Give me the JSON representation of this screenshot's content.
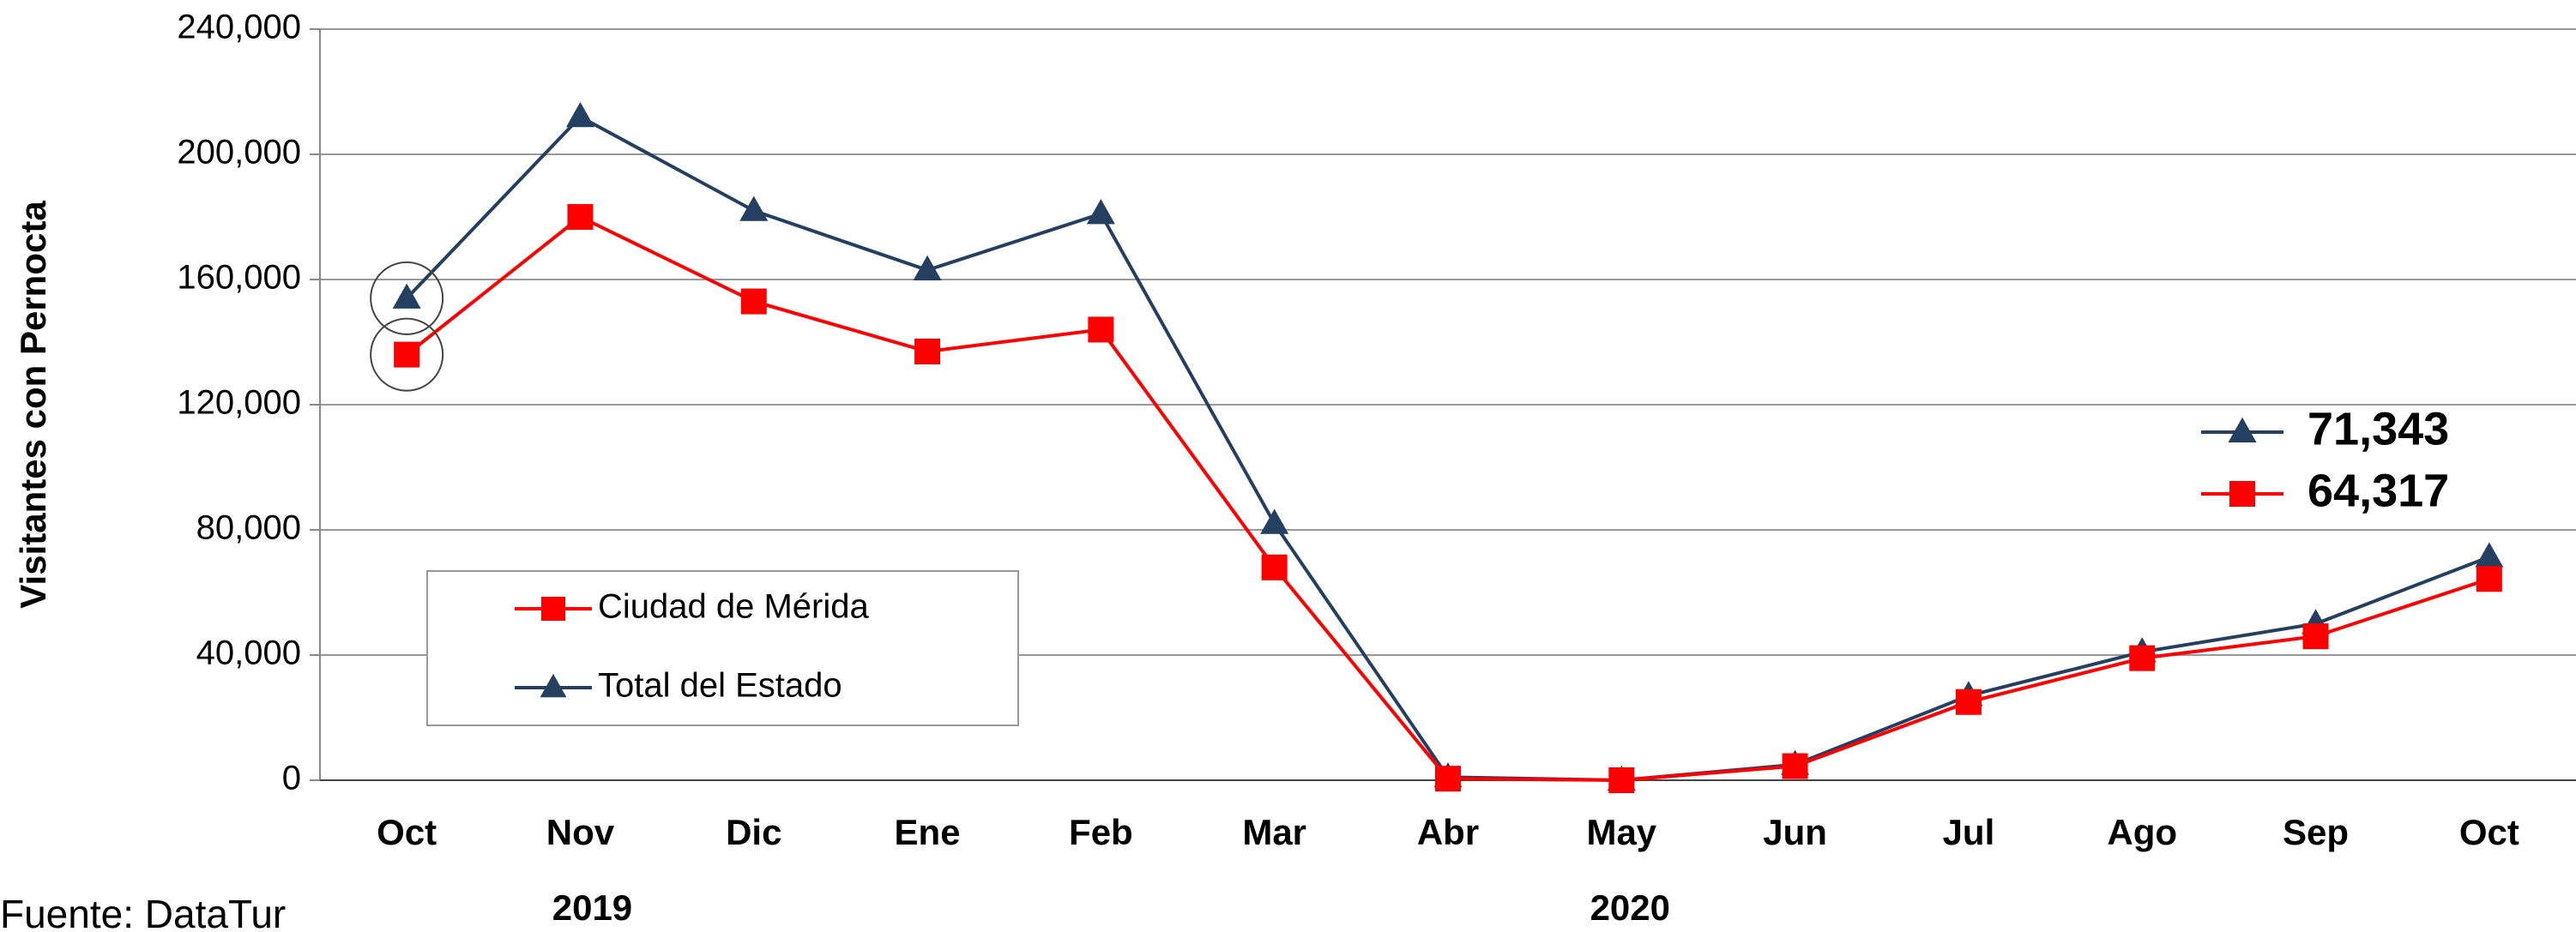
{
  "chart_data": {
    "type": "line",
    "y_label": "Visitantes con Pernocta",
    "categories": [
      "Oct",
      "Nov",
      "Dic",
      "Ene",
      "Feb",
      "Mar",
      "Abr",
      "May",
      "Jun",
      "Jul",
      "Ago",
      "Sep",
      "Oct"
    ],
    "year_labels": [
      "2019",
      "2020"
    ],
    "source": "Fuente: DataTur",
    "series": [
      {
        "name": "Ciudad de Mérida",
        "color": "#ff0000",
        "marker": "square",
        "values": [
          136000,
          180000,
          153000,
          137000,
          144000,
          68000,
          500,
          0,
          4500,
          25000,
          39000,
          46000,
          64317
        ],
        "value_labels": [
          null,
          null,
          null,
          null,
          null,
          null,
          null,
          null,
          null,
          null,
          null,
          null,
          "64,317"
        ]
      },
      {
        "name": "Total del Estado",
        "color": "#243f60",
        "marker": "triangle",
        "values": [
          154000,
          212000,
          182000,
          163000,
          181000,
          82000,
          1000,
          0,
          5000,
          27000,
          41000,
          50000,
          71343
        ],
        "value_labels": [
          null,
          null,
          null,
          null,
          null,
          null,
          null,
          null,
          null,
          null,
          null,
          null,
          "71,343"
        ]
      }
    ],
    "ylim": [
      0,
      240000
    ],
    "yticks": [
      0,
      {
        "value": 40000,
        "label": "40,000"
      },
      {
        "value": 80000,
        "label": "80,000"
      },
      {
        "value": 120000,
        "label": "120,000"
      },
      {
        "value": 160000,
        "label": "160,000"
      },
      {
        "value": 200000,
        "label": "200,000"
      },
      {
        "value": 240000,
        "label": "240,000"
      }
    ],
    "grid": true,
    "legend": "lower left"
  }
}
